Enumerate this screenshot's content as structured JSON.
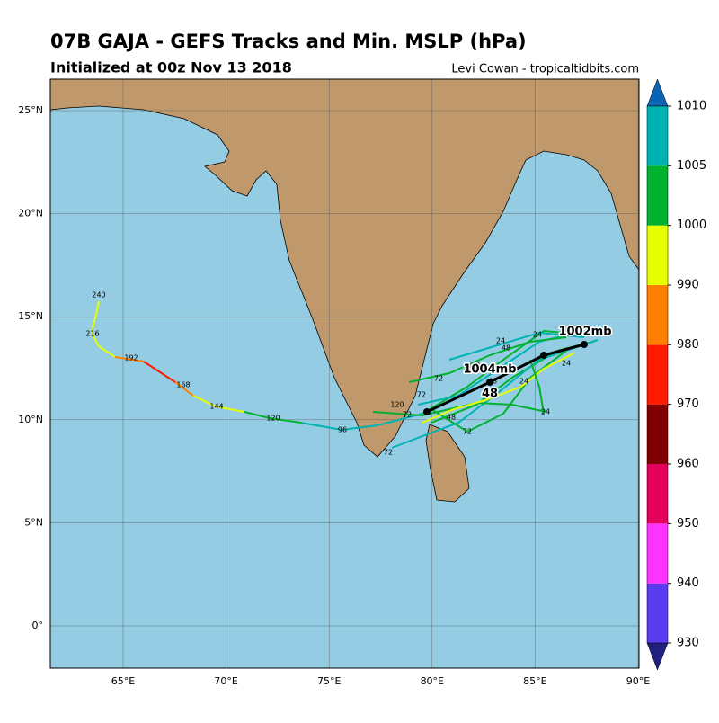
{
  "header": {
    "title": "07B GAJA - GEFS Tracks and Min. MSLP (hPa)",
    "subtitle": "Initialized at 00z Nov 13 2018",
    "credit": "Levi Cowan - tropicaltidbits.com"
  },
  "map": {
    "lon_labels": [
      "65°E",
      "70°E",
      "75°E",
      "80°E",
      "85°E",
      "90°E"
    ],
    "lat_labels": [
      "25°N",
      "20°N",
      "15°N",
      "10°N",
      "5°N",
      "0°"
    ],
    "track_labels": [
      "240",
      "216",
      "192",
      "168",
      "144",
      "120",
      "96",
      "72",
      "120",
      "72",
      "72",
      "48",
      "24",
      "24",
      "24",
      "48",
      "24",
      "72",
      "48",
      "24",
      "72",
      "48"
    ],
    "mean_labels": [
      "1002mb",
      "1004mb",
      "48"
    ]
  },
  "colorbar": {
    "ticks": [
      930,
      940,
      950,
      960,
      970,
      980,
      990,
      1000,
      1005,
      1010
    ]
  }
}
